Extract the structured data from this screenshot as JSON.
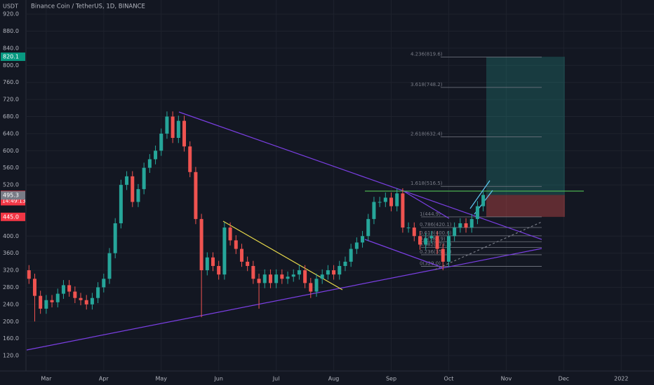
{
  "chart_data": {
    "type": "candlestick",
    "title": "Binance Coin / TetherUS, 1D, BINANCE",
    "y_unit_label": "USDT",
    "up_color": "#26a69a",
    "down_color": "#ef5350",
    "open": [
      320,
      300,
      260,
      230,
      250,
      245,
      265,
      285,
      270,
      255,
      250,
      240,
      255,
      280,
      300,
      360,
      430,
      520,
      540,
      480,
      510,
      560,
      580,
      600,
      640,
      680,
      630,
      670,
      610,
      550,
      440,
      320,
      350,
      330,
      310,
      420,
      390,
      370,
      340,
      330,
      300,
      290,
      310,
      290,
      310,
      300,
      305,
      310,
      320,
      290,
      270,
      300,
      310,
      320,
      310,
      330,
      340,
      370,
      385,
      400,
      440,
      480,
      480,
      490,
      470,
      500,
      420,
      420,
      400,
      380,
      395,
      400,
      370,
      340,
      400,
      420,
      430,
      420,
      440,
      470
    ],
    "high": [
      332,
      312,
      272,
      262,
      262,
      277,
      297,
      297,
      282,
      267,
      262,
      267,
      292,
      312,
      372,
      442,
      532,
      552,
      552,
      522,
      572,
      592,
      612,
      652,
      692,
      692,
      682,
      682,
      622,
      562,
      452,
      362,
      362,
      342,
      432,
      432,
      402,
      382,
      352,
      342,
      312,
      322,
      322,
      322,
      322,
      317,
      322,
      332,
      332,
      302,
      312,
      322,
      332,
      332,
      342,
      352,
      382,
      397,
      412,
      452,
      492,
      492,
      502,
      502,
      512,
      512,
      432,
      432,
      412,
      407,
      412,
      412,
      382,
      412,
      432,
      442,
      442,
      452,
      482,
      506
    ],
    "low": [
      288,
      200,
      218,
      218,
      233,
      233,
      253,
      258,
      243,
      238,
      228,
      228,
      243,
      268,
      288,
      348,
      418,
      508,
      468,
      468,
      498,
      548,
      568,
      588,
      628,
      618,
      618,
      598,
      538,
      428,
      210,
      308,
      318,
      298,
      298,
      378,
      358,
      328,
      318,
      288,
      230,
      278,
      278,
      278,
      288,
      288,
      293,
      298,
      278,
      255,
      258,
      288,
      298,
      298,
      298,
      318,
      328,
      358,
      373,
      388,
      428,
      468,
      468,
      458,
      458,
      408,
      408,
      388,
      368,
      368,
      383,
      358,
      320,
      328,
      388,
      408,
      408,
      408,
      428,
      458
    ],
    "close": [
      300,
      260,
      230,
      250,
      245,
      265,
      285,
      270,
      255,
      250,
      240,
      255,
      280,
      300,
      360,
      430,
      520,
      540,
      480,
      510,
      560,
      580,
      600,
      640,
      680,
      630,
      670,
      610,
      550,
      440,
      320,
      350,
      330,
      310,
      420,
      390,
      370,
      340,
      330,
      300,
      290,
      310,
      290,
      310,
      300,
      305,
      310,
      320,
      290,
      270,
      300,
      310,
      320,
      310,
      330,
      340,
      370,
      385,
      400,
      440,
      480,
      480,
      490,
      470,
      500,
      420,
      420,
      400,
      380,
      395,
      400,
      370,
      340,
      400,
      420,
      430,
      420,
      440,
      470,
      496.4
    ],
    "xlim": [
      -0.4,
      108.7
    ],
    "xticks": [
      {
        "value": 3,
        "label": "Mar"
      },
      {
        "value": 13,
        "label": "Apr"
      },
      {
        "value": 23,
        "label": "May"
      },
      {
        "value": 33,
        "label": "Jun"
      },
      {
        "value": 43,
        "label": "Jul"
      },
      {
        "value": 53,
        "label": "Aug"
      },
      {
        "value": 63,
        "label": "Sep"
      },
      {
        "value": 73,
        "label": "Oct"
      },
      {
        "value": 83,
        "label": "Nov"
      },
      {
        "value": 93,
        "label": "Dec"
      },
      {
        "value": 103,
        "label": "2022"
      }
    ],
    "ylim": [
      84,
      953
    ],
    "yticks": [
      {
        "value": 920,
        "label": "920.0"
      },
      {
        "value": 880,
        "label": "880.0"
      },
      {
        "value": 840,
        "label": "840.0"
      },
      {
        "value": 800,
        "label": "800.0"
      },
      {
        "value": 760,
        "label": "760.0"
      },
      {
        "value": 720,
        "label": "720.0"
      },
      {
        "value": 680,
        "label": "680.0"
      },
      {
        "value": 640,
        "label": "640.0"
      },
      {
        "value": 600,
        "label": "600.0"
      },
      {
        "value": 560,
        "label": "560.0"
      },
      {
        "value": 520,
        "label": "520.0"
      },
      {
        "value": 400,
        "label": "400.0"
      },
      {
        "value": 360,
        "label": "360.0"
      },
      {
        "value": 320,
        "label": "320.0"
      },
      {
        "value": 280,
        "label": "280.0"
      },
      {
        "value": 240,
        "label": "240.0"
      },
      {
        "value": 200,
        "label": "200.0"
      },
      {
        "value": 160,
        "label": "160.0"
      },
      {
        "value": 120,
        "label": "120.0"
      }
    ],
    "price_badges": [
      {
        "value": 820.1,
        "label": "820.1",
        "color": "#089981"
      },
      {
        "value": 496.4,
        "label": "496.4",
        "color": "#f23645",
        "sub": "14:49:13"
      },
      {
        "value": 495.3,
        "label": "495.3",
        "color": "#787b86"
      },
      {
        "value": 445.0,
        "label": "445.0",
        "color": "#f23645"
      }
    ],
    "fib_levels": [
      {
        "value": 819.6,
        "label": "4.236(819.6)"
      },
      {
        "value": 748.2,
        "label": "3.618(748.2)"
      },
      {
        "value": 632.4,
        "label": "2.618(632.4)"
      },
      {
        "value": 516.5,
        "label": "1.618(516.5)"
      },
      {
        "value": 444.9,
        "label": "1(444.9)"
      },
      {
        "value": 420.1,
        "label": "0.786(420.1)"
      },
      {
        "value": 400.6,
        "label": "0.618(400.6)"
      },
      {
        "value": 386.9,
        "label": "0.5(386.9)"
      },
      {
        "value": 373.2,
        "label": "0.382(373.2)"
      },
      {
        "value": 356.3,
        "label": "0.236(356.3)"
      },
      {
        "value": 329.0,
        "label": "0(329.0)"
      }
    ],
    "grid": true
  }
}
